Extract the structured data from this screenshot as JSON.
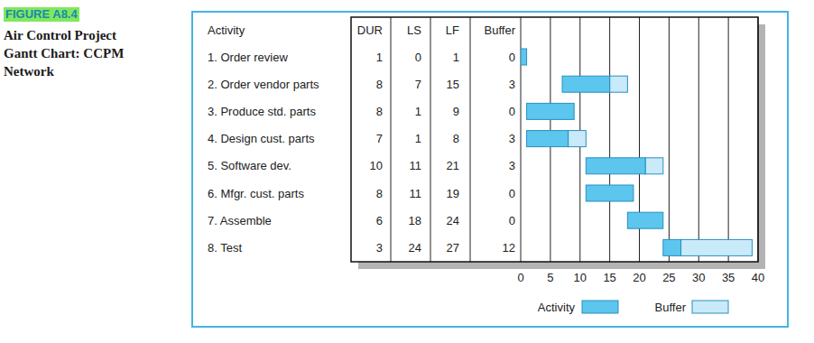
{
  "chart_data": {
    "type": "gantt",
    "figure_label": "FIGURE A8.4",
    "title": "Air Control Project Gantt Chart: CCPM Network",
    "columns": [
      "Activity",
      "DUR",
      "LS",
      "LF",
      "Buffer"
    ],
    "tasks": [
      {
        "name": "1. Order review",
        "duration": 1,
        "start": 0,
        "finish": 1,
        "buffer": 0
      },
      {
        "name": "2. Order vendor parts",
        "duration": 8,
        "start": 7,
        "finish": 15,
        "buffer": 3
      },
      {
        "name": "3. Produce std. parts",
        "duration": 8,
        "start": 1,
        "finish": 9,
        "buffer": 0
      },
      {
        "name": "4. Design cust. parts",
        "duration": 7,
        "start": 1,
        "finish": 8,
        "buffer": 3
      },
      {
        "name": "5. Software dev.",
        "duration": 10,
        "start": 11,
        "finish": 21,
        "buffer": 3
      },
      {
        "name": "6. Mfgr. cust. parts",
        "duration": 8,
        "start": 11,
        "finish": 19,
        "buffer": 0
      },
      {
        "name": "7. Assemble",
        "duration": 6,
        "start": 18,
        "finish": 24,
        "buffer": 0
      },
      {
        "name": "8. Test",
        "duration": 3,
        "start": 24,
        "finish": 27,
        "buffer": 12
      }
    ],
    "series": [
      {
        "name": "Activity",
        "color": "#5cc6ee"
      },
      {
        "name": "Buffer",
        "color": "#c9eaf8"
      }
    ],
    "xlim": [
      0,
      40
    ],
    "xticks": [
      0,
      5,
      10,
      15,
      20,
      25,
      30,
      35,
      40
    ],
    "grid": true
  }
}
